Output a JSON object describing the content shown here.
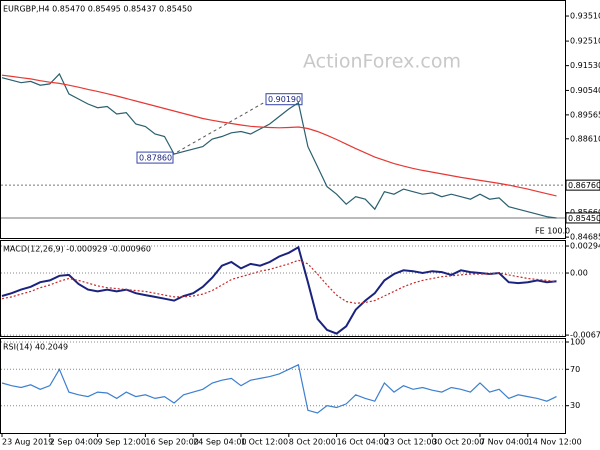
{
  "watermark": "ActionForex.com",
  "chart_data": [
    {
      "type": "line",
      "title": "EURGBP,H4  0.85470 0.85495 0.85437 0.85450",
      "ylim": [
        0.8465,
        0.9411
      ],
      "yticks": [
        {
          "value": 0.9351,
          "label": "0.93510"
        },
        {
          "value": 0.9251,
          "label": "0.92510"
        },
        {
          "value": 0.9153,
          "label": "0.91530"
        },
        {
          "value": 0.9054,
          "label": "0.90540"
        },
        {
          "value": 0.89565,
          "label": "0.89565"
        },
        {
          "value": 0.8861,
          "label": "0.88610"
        },
        {
          "value": 0.8566,
          "label": "0.85660"
        },
        {
          "value": 0.84685,
          "label": "0.84685"
        }
      ],
      "levels": [
        {
          "value": 0.8676,
          "label": "0.86760"
        },
        {
          "value": 0.8545,
          "label": "0.85450"
        }
      ],
      "annotations": [
        {
          "value": 0.9019,
          "label": "0.90190"
        },
        {
          "value": 0.8786,
          "label": "0.87860"
        }
      ],
      "note": "FE 100.0",
      "series": [
        {
          "color": "#2a5f6f",
          "values": [
            0.9105,
            0.9095,
            0.9085,
            0.909,
            0.9075,
            0.908,
            0.912,
            0.904,
            0.902,
            0.9,
            0.8985,
            0.899,
            0.896,
            0.8965,
            0.892,
            0.891,
            0.888,
            0.887,
            0.88,
            0.881,
            0.882,
            0.883,
            0.886,
            0.887,
            0.8885,
            0.889,
            0.888,
            0.89,
            0.892,
            0.895,
            0.898,
            0.9005,
            0.883,
            0.875,
            0.867,
            0.864,
            0.86,
            0.863,
            0.862,
            0.858,
            0.865,
            0.864,
            0.866,
            0.865,
            0.864,
            0.8645,
            0.863,
            0.864,
            0.863,
            0.862,
            0.864,
            0.862,
            0.8625,
            0.859,
            0.858,
            0.857,
            0.856,
            0.855,
            0.8545
          ]
        },
        {
          "color": "#e53935",
          "values": [
            0.9115,
            0.911,
            0.9105,
            0.91,
            0.9093,
            0.9087,
            0.9082,
            0.9075,
            0.9067,
            0.9058,
            0.905,
            0.9041,
            0.9032,
            0.9022,
            0.9012,
            0.9002,
            0.8992,
            0.8982,
            0.8972,
            0.8962,
            0.8952,
            0.8942,
            0.8935,
            0.8928,
            0.8922,
            0.8916,
            0.8911,
            0.8908,
            0.8906,
            0.8905,
            0.8906,
            0.8908,
            0.8902,
            0.889,
            0.8875,
            0.8858,
            0.884,
            0.8822,
            0.8805,
            0.8788,
            0.8775,
            0.8762,
            0.8752,
            0.8743,
            0.8735,
            0.8728,
            0.8721,
            0.8714,
            0.8707,
            0.8701,
            0.8695,
            0.8689,
            0.8683,
            0.8676,
            0.8668,
            0.866,
            0.8651,
            0.8642,
            0.8633
          ]
        }
      ]
    },
    {
      "type": "line",
      "title": "MACD(12,26,9) -0.000929 -0.000960",
      "ylim": [
        -0.00686,
        0.00349
      ],
      "yticks": [
        {
          "value": 0.002942,
          "label": "0.002942"
        },
        {
          "value": 0,
          "label": "0.00"
        },
        {
          "value": -0.006761,
          "label": "-0.006761"
        }
      ],
      "series": [
        {
          "color": "#1a237e",
          "values": [
            -0.0025,
            -0.0022,
            -0.0018,
            -0.0015,
            -0.001,
            -0.0008,
            -0.0003,
            -0.0002,
            -0.0012,
            -0.0018,
            -0.002,
            -0.0018,
            -0.002,
            -0.0018,
            -0.0022,
            -0.0024,
            -0.0026,
            -0.0028,
            -0.003,
            -0.0025,
            -0.0022,
            -0.0015,
            -0.0005,
            0.0008,
            0.0012,
            0.0005,
            0.001,
            0.0008,
            0.0012,
            0.0018,
            0.0022,
            0.0028,
            -0.001,
            -0.005,
            -0.0062,
            -0.0066,
            -0.0058,
            -0.004,
            -0.003,
            -0.0022,
            -0.0008,
            -0.0001,
            0.0003,
            0.0002,
            0,
            0.0002,
            0.0001,
            -0.0002,
            0.0003,
            0.0001,
            0,
            -0.0001,
            0,
            -0.001,
            -0.0011,
            -0.001,
            -0.0008,
            -0.001,
            -0.0009
          ]
        },
        {
          "color": "#c62828",
          "values": [
            -0.0028,
            -0.0026,
            -0.0023,
            -0.002,
            -0.0016,
            -0.0013,
            -0.0009,
            -0.0006,
            -0.0008,
            -0.0011,
            -0.0014,
            -0.0016,
            -0.0017,
            -0.0018,
            -0.0019,
            -0.002,
            -0.0022,
            -0.0024,
            -0.0026,
            -0.0026,
            -0.0025,
            -0.0023,
            -0.0019,
            -0.0013,
            -0.0007,
            -0.0004,
            -0.0001,
            0.0002,
            0.0004,
            0.0007,
            0.001,
            0.0014,
            0.001,
            -0.0001,
            -0.0013,
            -0.0024,
            -0.0031,
            -0.0033,
            -0.0032,
            -0.003,
            -0.0025,
            -0.002,
            -0.0015,
            -0.0011,
            -0.0008,
            -0.0006,
            -0.0004,
            -0.0003,
            -0.0002,
            -0.0001,
            -0.0001,
            -0.0001,
            0,
            -0.0002,
            -0.0004,
            -0.0006,
            -0.0007,
            -0.0008,
            -0.00096
          ]
        }
      ]
    },
    {
      "type": "line",
      "title": "RSI(14) 40.2049",
      "ylim": [
        0,
        103.3
      ],
      "yticks": [
        100,
        70,
        30
      ],
      "categories": [
        "23 Aug 2019",
        null,
        null,
        null,
        null,
        "2 Sep 04:00",
        null,
        null,
        null,
        null,
        "9 Sep 12:00",
        null,
        null,
        null,
        null,
        "16 Sep 20:00",
        null,
        null,
        null,
        null,
        "24 Sep 04:00",
        null,
        null,
        null,
        null,
        "1 Oct 12:00",
        null,
        null,
        null,
        null,
        "8 Oct 20:00",
        null,
        null,
        null,
        null,
        "16 Oct 04:00",
        null,
        null,
        null,
        null,
        "23 Oct 12:00",
        null,
        null,
        null,
        null,
        "30 Oct 20:00",
        null,
        null,
        null,
        null,
        "7 Nov 04:00",
        null,
        null,
        null,
        null,
        "14 Nov 12:00",
        null,
        null,
        null
      ],
      "series": [
        {
          "color": "#3d7fd0",
          "values": [
            55,
            52,
            50,
            53,
            48,
            52,
            70,
            45,
            42,
            40,
            45,
            44,
            38,
            45,
            40,
            42,
            38,
            40,
            33,
            42,
            45,
            48,
            55,
            58,
            60,
            52,
            58,
            60,
            62,
            65,
            70,
            75,
            25,
            22,
            30,
            28,
            32,
            42,
            38,
            35,
            55,
            45,
            52,
            48,
            50,
            47,
            45,
            50,
            48,
            45,
            55,
            45,
            48,
            38,
            42,
            40,
            38,
            35,
            40
          ]
        }
      ]
    }
  ]
}
